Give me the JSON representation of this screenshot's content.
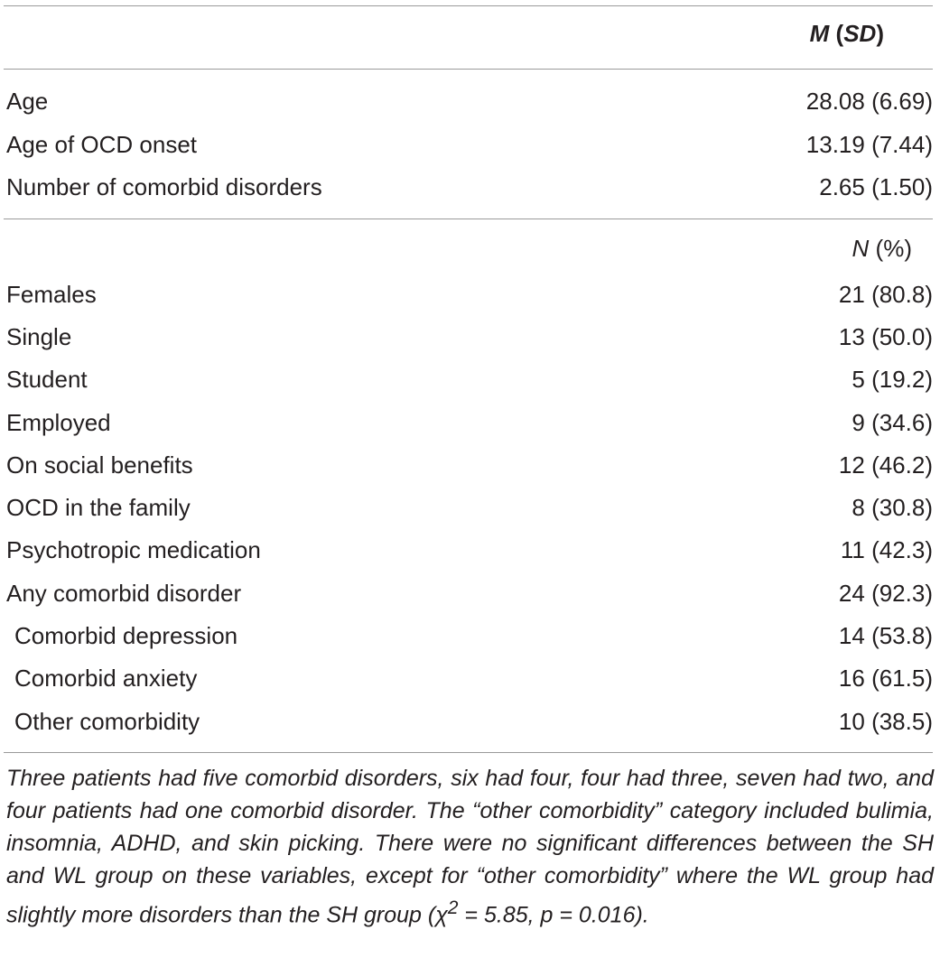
{
  "header": {
    "mean_symbol": "M",
    "sd_symbol": "SD",
    "open_paren": "(",
    "close_paren": ")"
  },
  "continuous_rows": [
    {
      "label": "Age",
      "value": "28.08 (6.69)"
    },
    {
      "label": "Age of OCD onset",
      "value": "13.19 (7.44)"
    },
    {
      "label": "Number of comorbid disorders",
      "value": "2.65 (1.50)"
    }
  ],
  "count_header": {
    "n_symbol": "N",
    "pct": " (%)"
  },
  "count_rows": [
    {
      "label": "Females",
      "value": "21 (80.8)"
    },
    {
      "label": "Single",
      "value": "13 (50.0)"
    },
    {
      "label": "Student",
      "value": "5 (19.2)"
    },
    {
      "label": "Employed",
      "value": "9 (34.6)"
    },
    {
      "label": "On social benefits",
      "value": "12 (46.2)"
    },
    {
      "label": "OCD in the family",
      "value": "8 (30.8)"
    },
    {
      "label": "Psychotropic medication",
      "value": "11 (42.3)"
    },
    {
      "label": "Any comorbid disorder",
      "value": "24 (92.3)"
    },
    {
      "label": "Comorbid depression",
      "value": "14 (53.8)"
    },
    {
      "label": "Comorbid anxiety",
      "value": "16 (61.5)"
    },
    {
      "label": "Other comorbidity",
      "value": "10 (38.5)"
    }
  ],
  "footnote": {
    "text_main": "Three patients had five comorbid disorders, six had four, four had three, seven had two, and four patients had one comorbid disorder. The “other comorbidity” category included bulimia, insomnia, ADHD, and skin picking. There were no significant differences between the SH and WL group on these variables, except for “other comorbidity” where the WL group had slightly more disorders than the SH group (",
    "chi_symbol": "χ",
    "chi_exponent": "2",
    "text_end": " = 5.85, p = 0.016)."
  }
}
